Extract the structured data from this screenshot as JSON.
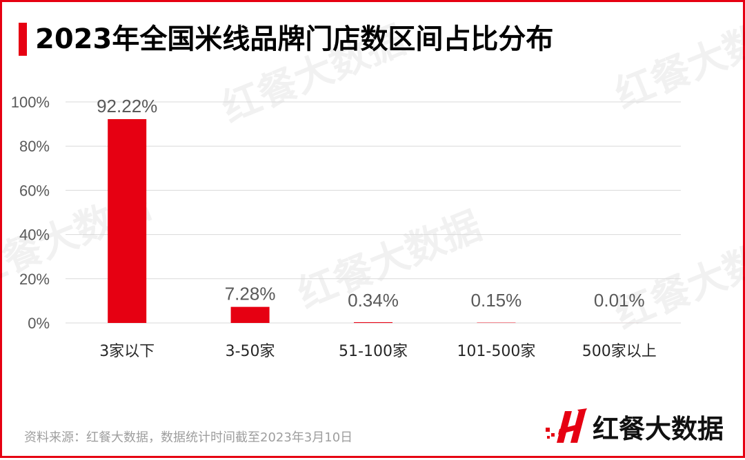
{
  "title": "2023年全国米线品牌门店数区间占比分布",
  "source": "资料来源：红餐大数据，数据统计时间截至2023年3月10日",
  "logo_text": "红餐大数据",
  "watermark": "红餐大数据",
  "colors": {
    "accent": "#e60012",
    "bar": "#e60012",
    "grid": "#d9d9d9",
    "axis_text": "#595959"
  },
  "chart_data": {
    "type": "bar",
    "categories": [
      "3家以下",
      "3-50家",
      "51-100家",
      "101-500家",
      "500家以上"
    ],
    "values": [
      92.22,
      7.28,
      0.34,
      0.15,
      0.01
    ],
    "data_labels": [
      "92.22%",
      "7.28%",
      "0.34%",
      "0.15%",
      "0.01%"
    ],
    "y_ticks": [
      "0%",
      "20%",
      "40%",
      "60%",
      "80%",
      "100%"
    ],
    "ylim": [
      0,
      100
    ],
    "grid": true,
    "legend": "none"
  }
}
